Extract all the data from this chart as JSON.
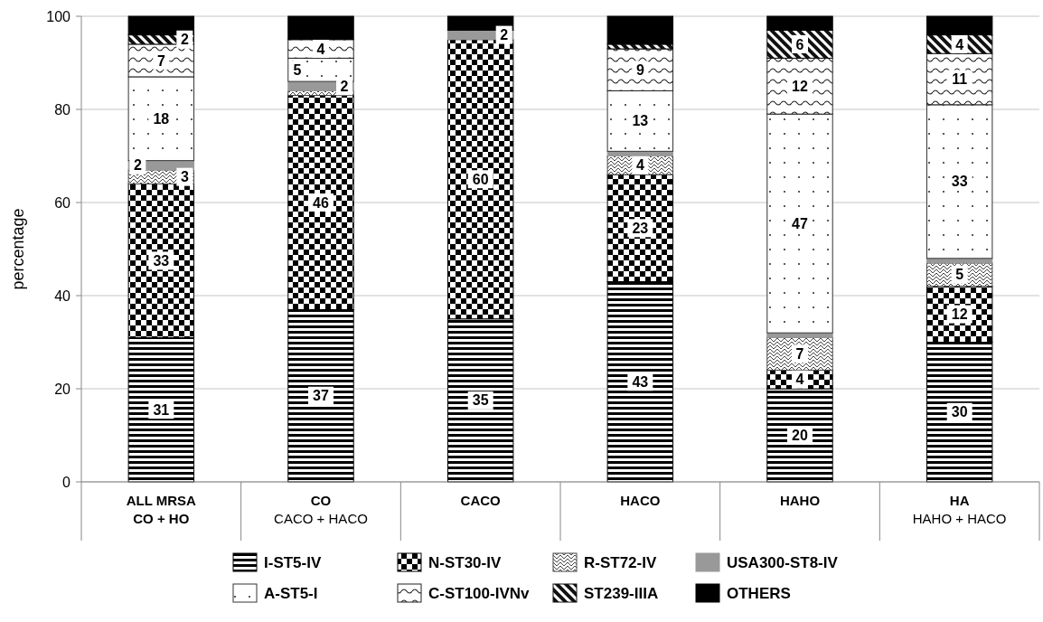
{
  "chart_data": {
    "type": "bar",
    "stacked": true,
    "ylabel": "percentage",
    "categories": [
      "ALL MRSA\nCO + HO",
      "CO\nCACO + HACO",
      "CACO",
      "HACO",
      "HAHO",
      "HA\nHAHO + HACO"
    ],
    "ylim": [
      0,
      100
    ],
    "yticks": [
      0,
      20,
      40,
      60,
      80,
      100
    ],
    "grid": "y",
    "legend": "bottom",
    "series": [
      {
        "name": "I-ST5-IV",
        "color": "#000000",
        "values": [
          31,
          37,
          35,
          43,
          20,
          30
        ],
        "value_labels": [
          "31",
          "37",
          "35",
          "43",
          "20",
          "30"
        ]
      },
      {
        "name": "N-ST30-IV",
        "color": "#000000",
        "values": [
          33,
          46,
          60,
          23,
          4,
          12
        ],
        "value_labels": [
          "33",
          "46",
          "60",
          "23",
          "4",
          "12"
        ]
      },
      {
        "name": "R-ST72-IV",
        "color": "#444444",
        "values": [
          3,
          1,
          0,
          4,
          7,
          5
        ],
        "value_labels": [
          "3",
          null,
          null,
          "4",
          "7",
          "5"
        ]
      },
      {
        "name": "USA300-ST8-IV",
        "color": "#999999",
        "values": [
          2,
          2,
          2,
          1,
          1,
          1
        ],
        "value_labels": [
          "2",
          "2",
          "2",
          null,
          null,
          null
        ]
      },
      {
        "name": "A-ST5-I",
        "color": "#333333",
        "values": [
          18,
          5,
          0,
          13,
          47,
          33
        ],
        "value_labels": [
          "18",
          "5",
          null,
          "13",
          "47",
          "33"
        ]
      },
      {
        "name": "C-ST100-IVNv",
        "color": "#222222",
        "values": [
          7,
          4,
          0,
          9,
          12,
          11
        ],
        "value_labels": [
          "7",
          "4",
          null,
          "9",
          "12",
          "11"
        ]
      },
      {
        "name": "ST239-IIIA",
        "color": "#111111",
        "values": [
          2,
          0,
          0,
          1,
          6,
          4
        ],
        "value_labels": [
          "2",
          null,
          null,
          null,
          "6",
          "4"
        ]
      },
      {
        "name": "OTHERS",
        "color": "#000000",
        "values": [
          4,
          5,
          3,
          6,
          3,
          4
        ],
        "value_labels": [
          null,
          null,
          null,
          null,
          null,
          null
        ]
      }
    ]
  }
}
